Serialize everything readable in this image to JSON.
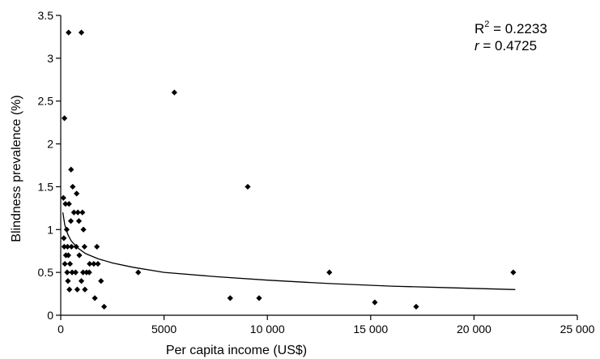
{
  "chart_data": {
    "type": "scatter",
    "xlabel": "Per capita income (US$)",
    "ylabel": "Blindness prevalence (%)",
    "xlim": [
      0,
      25000
    ],
    "ylim": [
      0,
      3.5
    ],
    "x_ticks": [
      0,
      5000,
      10000,
      15000,
      20000,
      25000
    ],
    "x_tick_labels": [
      "0",
      "5000",
      "10 000",
      "15 000",
      "20 000",
      "25 000"
    ],
    "y_ticks": [
      0,
      0.5,
      1,
      1.5,
      2,
      2.5,
      3,
      3.5
    ],
    "y_tick_labels": [
      "0",
      "0.5",
      "1",
      "1.5",
      "2",
      "2.5",
      "3",
      "3.5"
    ],
    "grid": false,
    "marker_color": "#000000",
    "points": [
      {
        "x": 130,
        "y": 1.37
      },
      {
        "x": 150,
        "y": 0.9
      },
      {
        "x": 170,
        "y": 0.8
      },
      {
        "x": 180,
        "y": 2.3
      },
      {
        "x": 200,
        "y": 0.6
      },
      {
        "x": 230,
        "y": 1.3
      },
      {
        "x": 250,
        "y": 0.7
      },
      {
        "x": 290,
        "y": 1.0
      },
      {
        "x": 310,
        "y": 0.5
      },
      {
        "x": 330,
        "y": 0.8
      },
      {
        "x": 350,
        "y": 0.4
      },
      {
        "x": 370,
        "y": 0.7
      },
      {
        "x": 380,
        "y": 3.3
      },
      {
        "x": 400,
        "y": 1.3
      },
      {
        "x": 420,
        "y": 0.3
      },
      {
        "x": 450,
        "y": 0.6
      },
      {
        "x": 490,
        "y": 1.1
      },
      {
        "x": 500,
        "y": 1.7
      },
      {
        "x": 520,
        "y": 0.8
      },
      {
        "x": 550,
        "y": 0.5
      },
      {
        "x": 580,
        "y": 1.5
      },
      {
        "x": 640,
        "y": 1.2
      },
      {
        "x": 720,
        "y": 0.5
      },
      {
        "x": 750,
        "y": 0.8
      },
      {
        "x": 770,
        "y": 1.42
      },
      {
        "x": 800,
        "y": 0.3
      },
      {
        "x": 830,
        "y": 1.2
      },
      {
        "x": 880,
        "y": 1.1
      },
      {
        "x": 900,
        "y": 0.7
      },
      {
        "x": 1000,
        "y": 3.3
      },
      {
        "x": 1000,
        "y": 0.4
      },
      {
        "x": 1050,
        "y": 1.2
      },
      {
        "x": 1080,
        "y": 0.5
      },
      {
        "x": 1100,
        "y": 1.0
      },
      {
        "x": 1150,
        "y": 0.8
      },
      {
        "x": 1170,
        "y": 0.3
      },
      {
        "x": 1250,
        "y": 0.5
      },
      {
        "x": 1380,
        "y": 0.5
      },
      {
        "x": 1400,
        "y": 0.6
      },
      {
        "x": 1600,
        "y": 0.6
      },
      {
        "x": 1650,
        "y": 0.2
      },
      {
        "x": 1750,
        "y": 0.8
      },
      {
        "x": 1800,
        "y": 0.6
      },
      {
        "x": 1950,
        "y": 0.4
      },
      {
        "x": 2100,
        "y": 0.1
      },
      {
        "x": 3750,
        "y": 0.5
      },
      {
        "x": 5500,
        "y": 2.6
      },
      {
        "x": 8200,
        "y": 0.2
      },
      {
        "x": 9050,
        "y": 1.5
      },
      {
        "x": 9600,
        "y": 0.2
      },
      {
        "x": 13000,
        "y": 0.5
      },
      {
        "x": 15200,
        "y": 0.15
      },
      {
        "x": 17200,
        "y": 0.1
      },
      {
        "x": 21900,
        "y": 0.5
      }
    ],
    "trendline": {
      "type": "power",
      "points": [
        {
          "x": 100,
          "y": 1.2
        },
        {
          "x": 200,
          "y": 1.05
        },
        {
          "x": 350,
          "y": 0.94
        },
        {
          "x": 500,
          "y": 0.87
        },
        {
          "x": 800,
          "y": 0.79
        },
        {
          "x": 1200,
          "y": 0.72
        },
        {
          "x": 1800,
          "y": 0.66
        },
        {
          "x": 2500,
          "y": 0.61
        },
        {
          "x": 3500,
          "y": 0.56
        },
        {
          "x": 5000,
          "y": 0.5
        },
        {
          "x": 7500,
          "y": 0.45
        },
        {
          "x": 10000,
          "y": 0.41
        },
        {
          "x": 13000,
          "y": 0.37
        },
        {
          "x": 16000,
          "y": 0.34
        },
        {
          "x": 19000,
          "y": 0.32
        },
        {
          "x": 22000,
          "y": 0.3
        }
      ]
    },
    "annotations": {
      "r2_label": "R",
      "r2_sup": "2",
      "r2_value": " = 0.2233",
      "r_label": "r",
      "r_value": " = 0.4725"
    }
  }
}
